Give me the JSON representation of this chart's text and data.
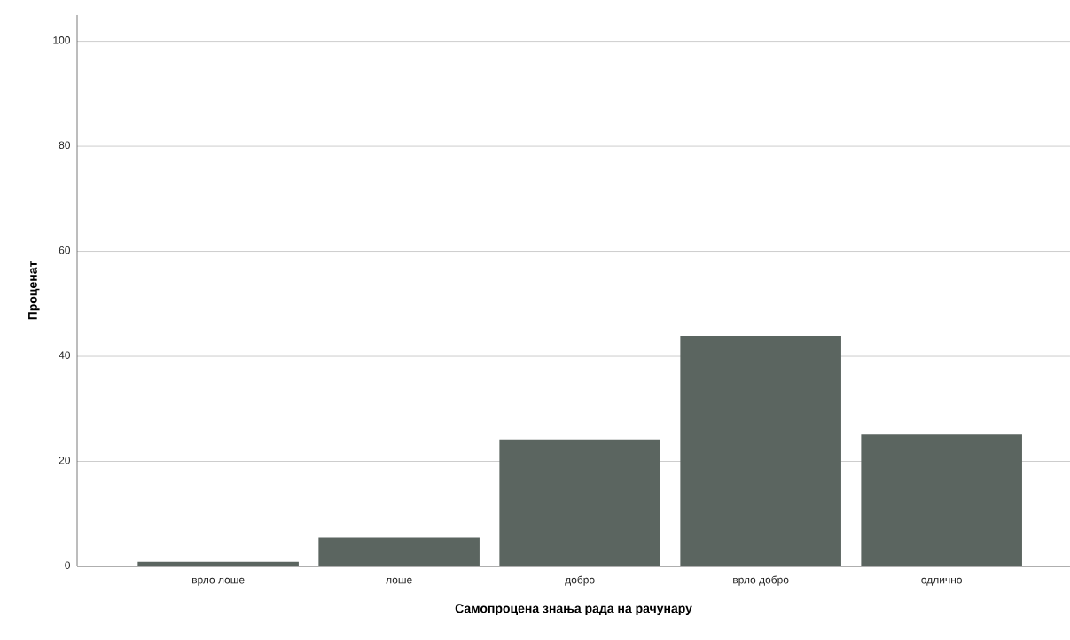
{
  "chart_data": {
    "type": "bar",
    "xlabel": "Самопроцена знања рада на рачунару",
    "ylabel": "Проценат",
    "categories": [
      "врло лоше",
      "лоше",
      "добро",
      "врло добро",
      "одлично"
    ],
    "values": [
      0.9,
      5.5,
      24.2,
      43.9,
      25.1
    ],
    "color": "#5b6560",
    "ylim": [
      0,
      105
    ],
    "yticks": [
      0,
      20,
      40,
      60,
      80,
      100
    ],
    "grid": "y"
  }
}
